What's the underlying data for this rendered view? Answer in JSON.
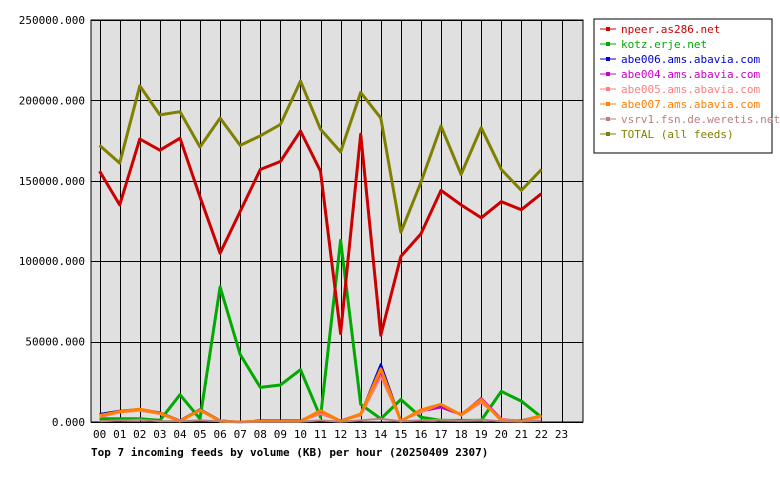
{
  "chart_data": {
    "type": "line",
    "title": "Top 7 incoming feeds by volume (KB) per hour (20250409 2307)",
    "xlabel": "",
    "ylabel": "",
    "ylim": [
      0,
      250000
    ],
    "yticks": [
      "0.000",
      "50000.000",
      "100000.000",
      "150000.000",
      "200000.000",
      "250000.000"
    ],
    "categories": [
      "00",
      "01",
      "02",
      "03",
      "04",
      "05",
      "06",
      "07",
      "08",
      "09",
      "10",
      "11",
      "12",
      "13",
      "14",
      "15",
      "16",
      "17",
      "18",
      "19",
      "20",
      "21",
      "22",
      "23"
    ],
    "grid": true,
    "legend_position": "right",
    "series": [
      {
        "name": "npeer.as286.net",
        "color": "#cc0000",
        "values": [
          156000,
          135000,
          176000,
          169000,
          176500,
          140000,
          105000,
          131000,
          157000,
          162000,
          181000,
          156000,
          55000,
          179000,
          54000,
          103000,
          117000,
          144000,
          135000,
          127000,
          137000,
          132000,
          142000,
          null
        ]
      },
      {
        "name": "kotz.erje.net",
        "color": "#00aa00",
        "values": [
          2000,
          2000,
          2000,
          1000,
          17000,
          2000,
          84000,
          42000,
          21500,
          23000,
          32500,
          3000,
          113000,
          11000,
          2000,
          14000,
          3000,
          1000,
          1000,
          1000,
          19000,
          13000,
          3000,
          null
        ]
      },
      {
        "name": "abe006.ams.abavia.com",
        "color": "#0000cc",
        "values": [
          5000,
          7000,
          8000,
          6000,
          1000,
          8000,
          1000,
          0,
          1000,
          1000,
          1000,
          6000,
          1000,
          5000,
          36000,
          1000,
          7000,
          10000,
          5000,
          14000,
          1000,
          1000,
          4000,
          null
        ]
      },
      {
        "name": "abe004.ams.abavia.com",
        "color": "#cc00cc",
        "values": [
          4500,
          6500,
          7500,
          5500,
          1000,
          7500,
          1000,
          0,
          500,
          500,
          500,
          5500,
          500,
          4500,
          31000,
          1000,
          6500,
          9000,
          4500,
          15000,
          2000,
          500,
          3500,
          null
        ]
      },
      {
        "name": "abe005.ams.abavia.com",
        "color": "#ff7f7f",
        "values": [
          3000,
          6000,
          7000,
          5000,
          1000,
          7000,
          1000,
          0,
          500,
          500,
          500,
          5000,
          500,
          4000,
          28000,
          1000,
          6000,
          11000,
          4000,
          12000,
          2000,
          500,
          3000,
          null
        ]
      },
      {
        "name": "abe007.ams.abavia.com",
        "color": "#ff8000",
        "values": [
          4000,
          6500,
          8000,
          5500,
          500,
          7500,
          500,
          0,
          500,
          500,
          500,
          7000,
          500,
          5000,
          33000,
          500,
          7500,
          11000,
          4500,
          14000,
          1000,
          500,
          4000,
          null
        ]
      },
      {
        "name": "vsrv1.fsn.de.weretis.net",
        "color": "#bb7f7f",
        "values": [
          500,
          1000,
          1500,
          500,
          500,
          1000,
          500,
          0,
          200,
          200,
          200,
          1000,
          200,
          1000,
          2000,
          500,
          1000,
          1500,
          800,
          1500,
          500,
          300,
          800,
          null
        ]
      },
      {
        "name": "TOTAL (all feeds)",
        "color": "#808000",
        "values": [
          172000,
          161000,
          209000,
          191000,
          193000,
          171000,
          189000,
          172000,
          178000,
          185000,
          212000,
          182000,
          168000,
          205000,
          189000,
          118000,
          149000,
          184000,
          154000,
          183000,
          157000,
          144000,
          157000,
          null
        ]
      }
    ]
  }
}
